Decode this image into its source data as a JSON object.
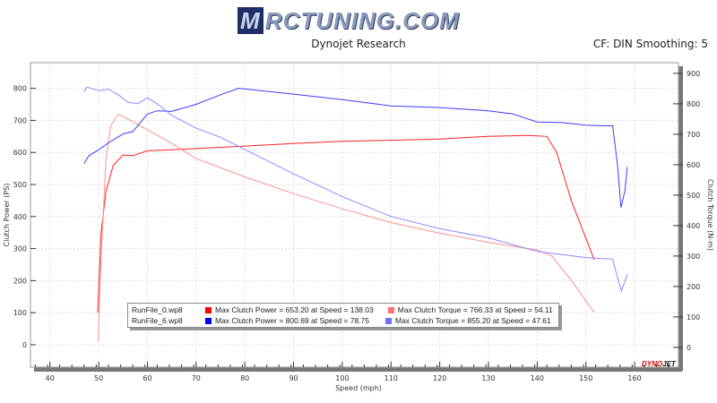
{
  "header": {
    "logo_text": "MRCTUNING.COM",
    "title": "Dynojet Research",
    "cf_info": "CF: DIN Smoothing: 5",
    "brand_mark": "DYNOJET"
  },
  "chart_data": {
    "type": "line",
    "xlabel": "Speed (mph)",
    "ylabel_left": "Clutch Power (PS)",
    "ylabel_right": "Clutch Torque (N-m)",
    "xlim": [
      36,
      169
    ],
    "ylim_left": [
      -70,
      880
    ],
    "ylim_right": [
      -65,
      935
    ],
    "x_ticks": [
      40,
      50,
      60,
      70,
      80,
      90,
      100,
      110,
      120,
      130,
      140,
      150,
      160
    ],
    "y_ticks_left": [
      0,
      100,
      200,
      300,
      400,
      500,
      600,
      700,
      800
    ],
    "y_ticks_right": [
      0,
      100,
      200,
      300,
      400,
      500,
      600,
      700,
      800,
      900
    ],
    "grid": true,
    "series": [
      {
        "name": "RunFile_0.wp8",
        "metric": "power",
        "axis": "left",
        "color": "#ff2020",
        "x": [
          49.8,
          50.5,
          51.5,
          53,
          55,
          57,
          60,
          65,
          70,
          80,
          90,
          100,
          110,
          120,
          130,
          138,
          142,
          144,
          147,
          151.7
        ],
        "y": [
          100,
          350,
          480,
          560,
          592,
          590,
          605,
          608,
          612,
          620,
          628,
          635,
          638,
          642,
          650,
          653,
          650,
          600,
          450,
          265
        ]
      },
      {
        "name": "RunFile_0.wp8",
        "metric": "torque",
        "axis": "right",
        "color": "#ff9090",
        "x": [
          49.9,
          50.5,
          51.5,
          52.5,
          54.11,
          56,
          60,
          65,
          70,
          80,
          90,
          100,
          110,
          120,
          130,
          140,
          143,
          147,
          151.7
        ],
        "y": [
          20,
          300,
          620,
          730,
          766,
          750,
          715,
          670,
          620,
          560,
          505,
          455,
          410,
          375,
          345,
          320,
          300,
          220,
          115
        ]
      },
      {
        "name": "RunFile_6.wp8",
        "metric": "power",
        "axis": "left",
        "color": "#3a3aff",
        "x": [
          47,
          48,
          50,
          52,
          55,
          57,
          60,
          62,
          65,
          70,
          75,
          78.75,
          85,
          90,
          100,
          110,
          120,
          130,
          135,
          140,
          145,
          150,
          154,
          155.5,
          156.5,
          157.2,
          158,
          158.5
        ],
        "y": [
          565,
          590,
          608,
          630,
          658,
          665,
          720,
          730,
          728,
          750,
          780,
          800,
          790,
          782,
          765,
          745,
          740,
          730,
          720,
          695,
          693,
          685,
          683,
          683,
          560,
          428,
          480,
          555
        ]
      },
      {
        "name": "RunFile_6.wp8",
        "metric": "torque",
        "axis": "right",
        "color": "#8888ff",
        "x": [
          47,
          47.61,
          50,
          52,
          54,
          56,
          58,
          60,
          62,
          65,
          70,
          75,
          80,
          90,
          100,
          110,
          120,
          130,
          140,
          150,
          155.5,
          156.5,
          157.3,
          158.5
        ],
        "y": [
          840,
          855,
          843,
          848,
          830,
          805,
          800,
          820,
          800,
          762,
          720,
          690,
          650,
          570,
          495,
          430,
          390,
          360,
          315,
          295,
          290,
          230,
          185,
          240
        ]
      }
    ]
  },
  "legend": {
    "rows": [
      {
        "file": "RunFile_0.wp8",
        "power": "Max Clutch Power = 653.20 at Speed = 138.03",
        "torque": "Max Clutch Torque = 766.33 at Speed = 54.11",
        "power_color": "#ff0000",
        "torque_color": "#ff7070"
      },
      {
        "file": "RunFile_6.wp8",
        "power": "Max Clutch Power = 800.69 at Speed = 78.75",
        "torque": "Max Clutch Torque = 855.20 at Speed = 47.61",
        "power_color": "#0000ff",
        "torque_color": "#7070ff"
      }
    ]
  }
}
